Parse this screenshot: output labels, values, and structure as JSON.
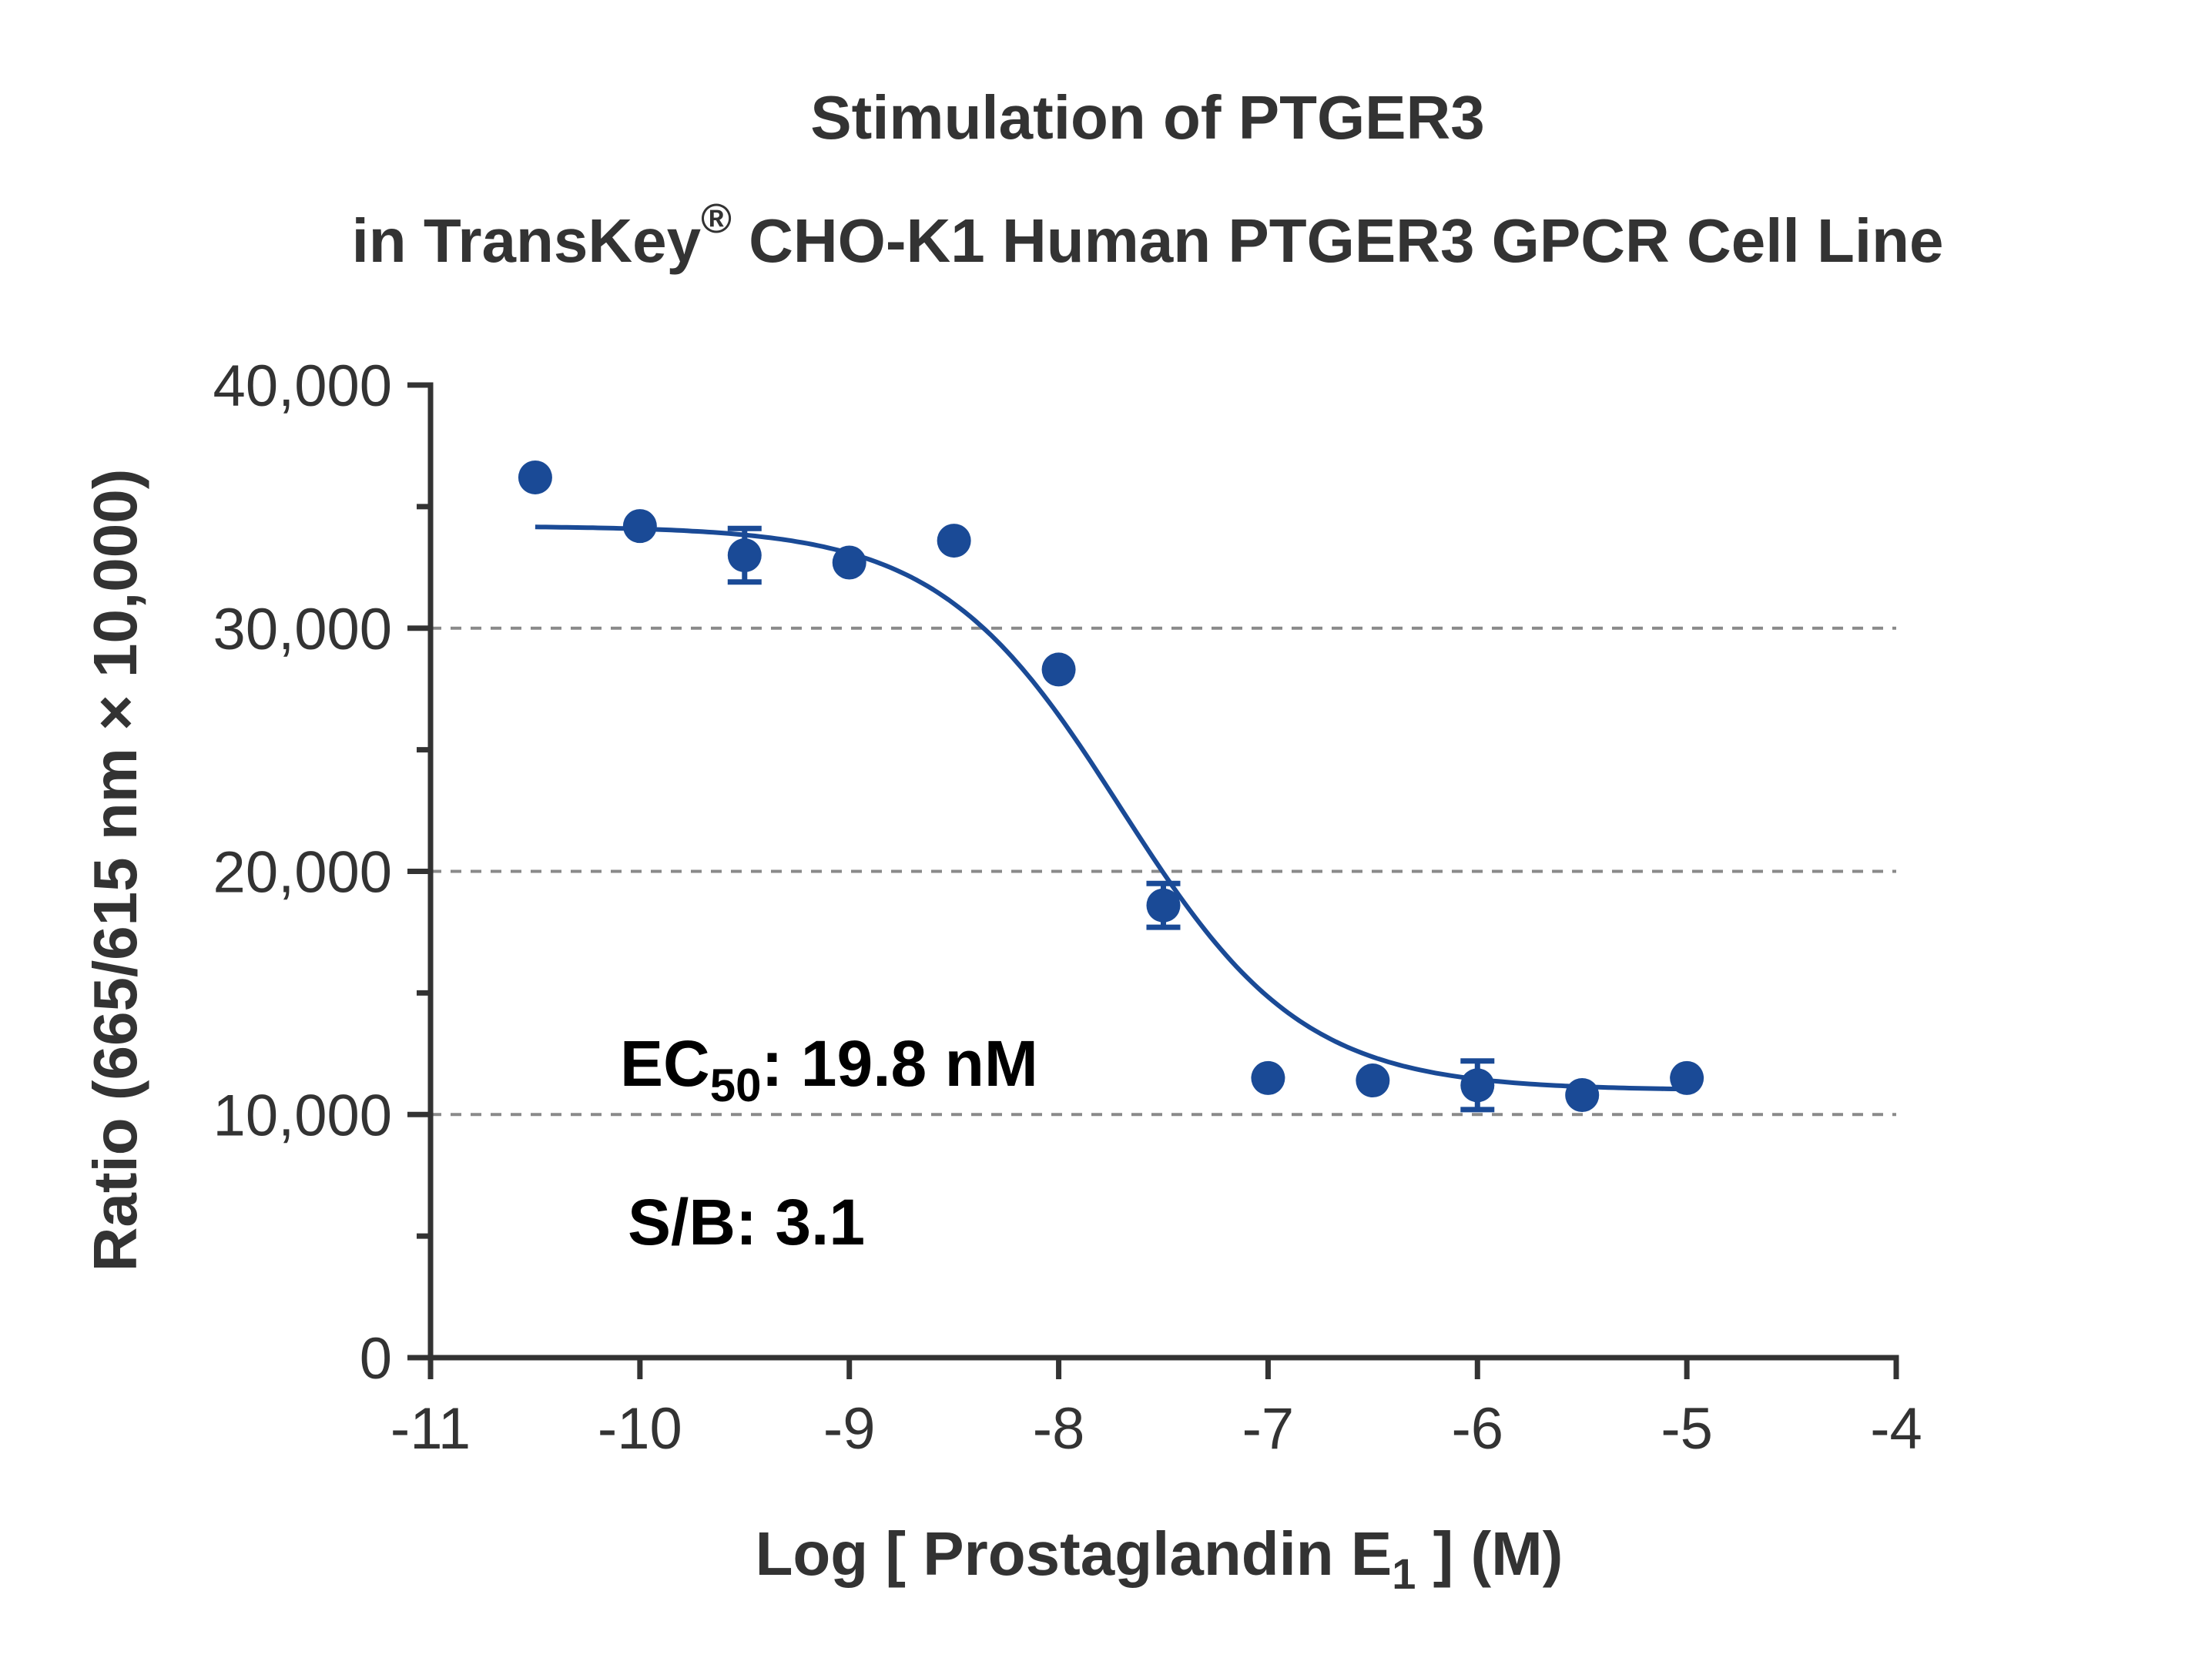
{
  "chart_data": {
    "type": "scatter",
    "title_line1": "Stimulation of  PTGER3",
    "title_line2_pre": "in TransKey",
    "title_line2_sup": "®",
    "title_line2_post": " CHO-K1 Human PTGER3 GPCR Cell Line",
    "xlabel_pre": "Log [ Prostaglandin E",
    "xlabel_sub": "1",
    "xlabel_post": " ]  (M)",
    "ylabel": "Ratio (665/615 nm × 10,000)",
    "xlim": [
      -11,
      -4
    ],
    "ylim": [
      0,
      40000
    ],
    "x_ticks": [
      -11,
      -10,
      -9,
      -8,
      -7,
      -6,
      -5,
      -4
    ],
    "x_tick_labels": [
      "-11",
      "-10",
      "-9",
      "-8",
      "-7",
      "-6",
      "-5",
      "-4"
    ],
    "y_ticks": [
      0,
      10000,
      20000,
      30000,
      40000
    ],
    "y_tick_labels": [
      "0",
      "10,000",
      "20,000",
      "30,000",
      "40,000"
    ],
    "y_minor_ticks": [
      5000,
      15000,
      25000,
      35000
    ],
    "gridlines_y": [
      10000,
      20000,
      30000
    ],
    "grid": "dashed horizontal at 10,000, 20,000, 30,000",
    "series": [
      {
        "color": "#1a4a96",
        "points": [
          {
            "x": -10.5,
            "y": 36200,
            "err": 0
          },
          {
            "x": -10.0,
            "y": 34200,
            "err": 0
          },
          {
            "x": -9.5,
            "y": 33000,
            "err": 1100
          },
          {
            "x": -9.0,
            "y": 32700,
            "err": 0
          },
          {
            "x": -8.5,
            "y": 33600,
            "err": 0
          },
          {
            "x": -8.0,
            "y": 28300,
            "err": 0
          },
          {
            "x": -7.5,
            "y": 18600,
            "err": 900
          },
          {
            "x": -7.0,
            "y": 11500,
            "err": 0
          },
          {
            "x": -6.5,
            "y": 11400,
            "err": 0
          },
          {
            "x": -6.0,
            "y": 11200,
            "err": 1000
          },
          {
            "x": -5.5,
            "y": 10800,
            "err": 0
          },
          {
            "x": -5.0,
            "y": 11500,
            "err": 0
          }
        ]
      }
    ],
    "fit_curve": {
      "model": "four-parameter logistic",
      "top": 34200,
      "bottom": 11000,
      "log_ec50": -7.703,
      "hill": -1.0,
      "x_range": [
        -10.5,
        -5.0
      ]
    },
    "annotations": {
      "ec50_pre": "EC",
      "ec50_sub": "50",
      "ec50_post": ": 19.8 nM",
      "sb": "S/B: 3.1"
    }
  }
}
